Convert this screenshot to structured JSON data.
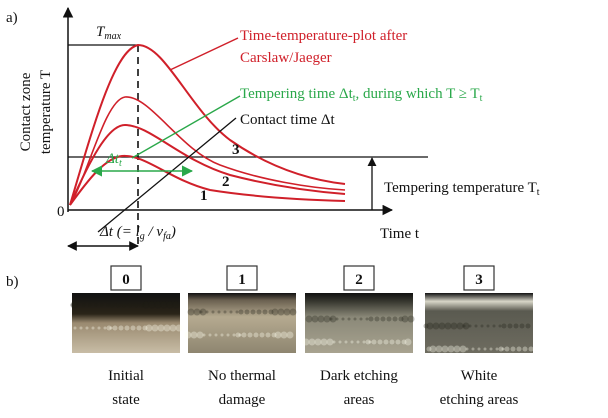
{
  "panel_a": {
    "label": "a)",
    "y_axis_label": [
      "Contact zone",
      "temperature T"
    ],
    "t_max": {
      "symbol": "T",
      "subscript": "max"
    },
    "origin": "0",
    "x_axis_label": "Time t",
    "carslaw_note": [
      "Time-temperature-plot after",
      "Carslaw/Jaeger"
    ],
    "tempering_time_note": {
      "part1": "Tempering time Δt",
      "sub1": "t",
      "part2": ", during which T ≥ T",
      "sub2": "t"
    },
    "contact_time_note": "Contact time Δt",
    "delta_t_t": {
      "symbol": "Δt",
      "subscript": "t"
    },
    "delta_t_formula": {
      "part1": "Δt (= l",
      "sub1": "g",
      "part2": " / v",
      "sub2": "fa",
      "part3": ")"
    },
    "tempering_temperature": {
      "text": "Tempering  temperature T",
      "subscript": "t"
    },
    "curve_labels": [
      "1",
      "2",
      "3"
    ]
  },
  "panel_b": {
    "label": "b)",
    "samples": [
      {
        "number": "0",
        "caption": [
          "Initial",
          "state"
        ]
      },
      {
        "number": "1",
        "caption": [
          "No thermal",
          "damage"
        ]
      },
      {
        "number": "2",
        "caption": [
          "Dark etching",
          "areas"
        ]
      },
      {
        "number": "3",
        "caption": [
          "White",
          "etching areas"
        ]
      }
    ]
  }
}
